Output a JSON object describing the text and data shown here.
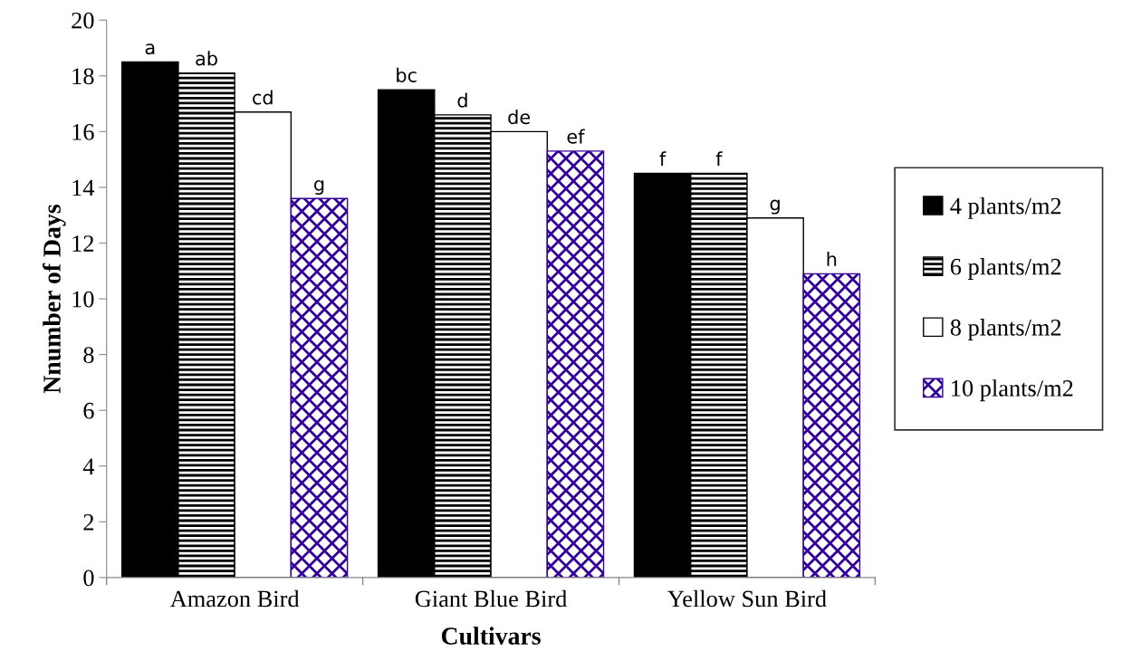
{
  "chart_data": {
    "type": "bar",
    "xlabel": "Cultivars",
    "ylabel": "Nnumber of Days",
    "categories": [
      "Amazon Bird",
      "Giant Blue Bird",
      "Yellow Sun Bird"
    ],
    "series": [
      {
        "name": "4 plants/m2",
        "color": "#000000",
        "values": [
          18.5,
          17.5,
          14.5
        ],
        "value_labels": [
          "a",
          "bc",
          "f"
        ]
      },
      {
        "name": "6 plants/m2",
        "color": "#000000",
        "values": [
          18.1,
          16.6,
          14.5
        ],
        "value_labels": [
          "ab",
          "d",
          "f"
        ]
      },
      {
        "name": "8 plants/m2",
        "color": "#ffffff",
        "values": [
          16.7,
          16.0,
          12.9
        ],
        "value_labels": [
          "cd",
          "de",
          "g"
        ]
      },
      {
        "name": "10 plants/m2",
        "color": "#330099",
        "values": [
          13.6,
          15.3,
          10.9
        ],
        "value_labels": [
          "g",
          "ef",
          "h"
        ]
      }
    ],
    "ylim": [
      0,
      20
    ],
    "yticks": [
      0,
      2,
      4,
      6,
      8,
      10,
      12,
      14,
      16,
      18,
      20
    ],
    "grid": false,
    "legend": "right"
  }
}
